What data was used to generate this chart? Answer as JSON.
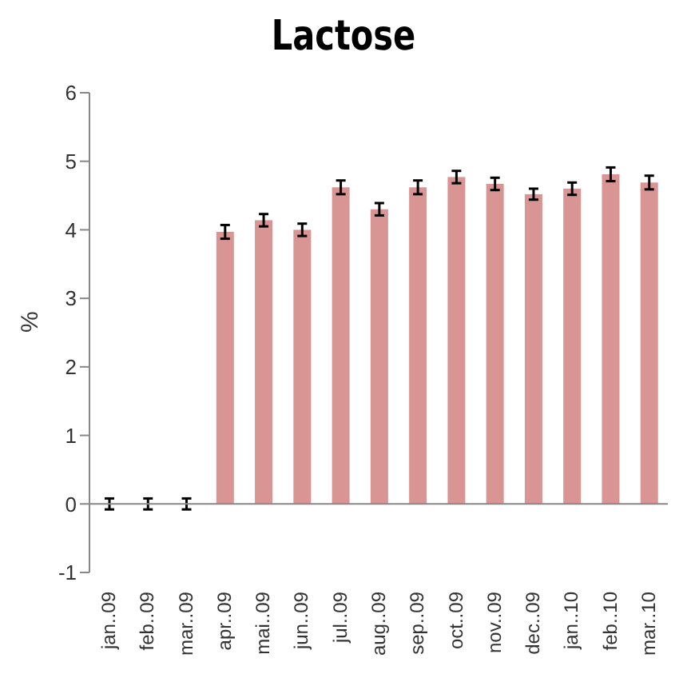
{
  "chart_data": {
    "type": "bar",
    "title": "Lactose",
    "ylabel": "%",
    "categories": [
      "jan..09",
      "feb..09",
      "mar..09",
      "apr..09",
      "mai..09",
      "jun..09",
      "jul..09",
      "aug..09",
      "sep..09",
      "oct..09",
      "nov..09",
      "dec..09",
      "jan..10",
      "feb..10",
      "mar..10"
    ],
    "values": [
      0,
      0,
      0,
      3.97,
      4.14,
      4.0,
      4.62,
      4.3,
      4.62,
      4.77,
      4.67,
      4.52,
      4.6,
      4.81,
      4.69
    ],
    "errors": [
      0.08,
      0.08,
      0.08,
      0.1,
      0.09,
      0.09,
      0.1,
      0.09,
      0.1,
      0.09,
      0.09,
      0.08,
      0.09,
      0.1,
      0.1
    ],
    "color": "#d99594",
    "ylim": [
      -1,
      6
    ],
    "yticks": [
      -1,
      0,
      1,
      2,
      3,
      4,
      5,
      6
    ],
    "ref_lines": [
      {
        "axis": "y",
        "value": 0,
        "color": "#888888"
      }
    ]
  }
}
